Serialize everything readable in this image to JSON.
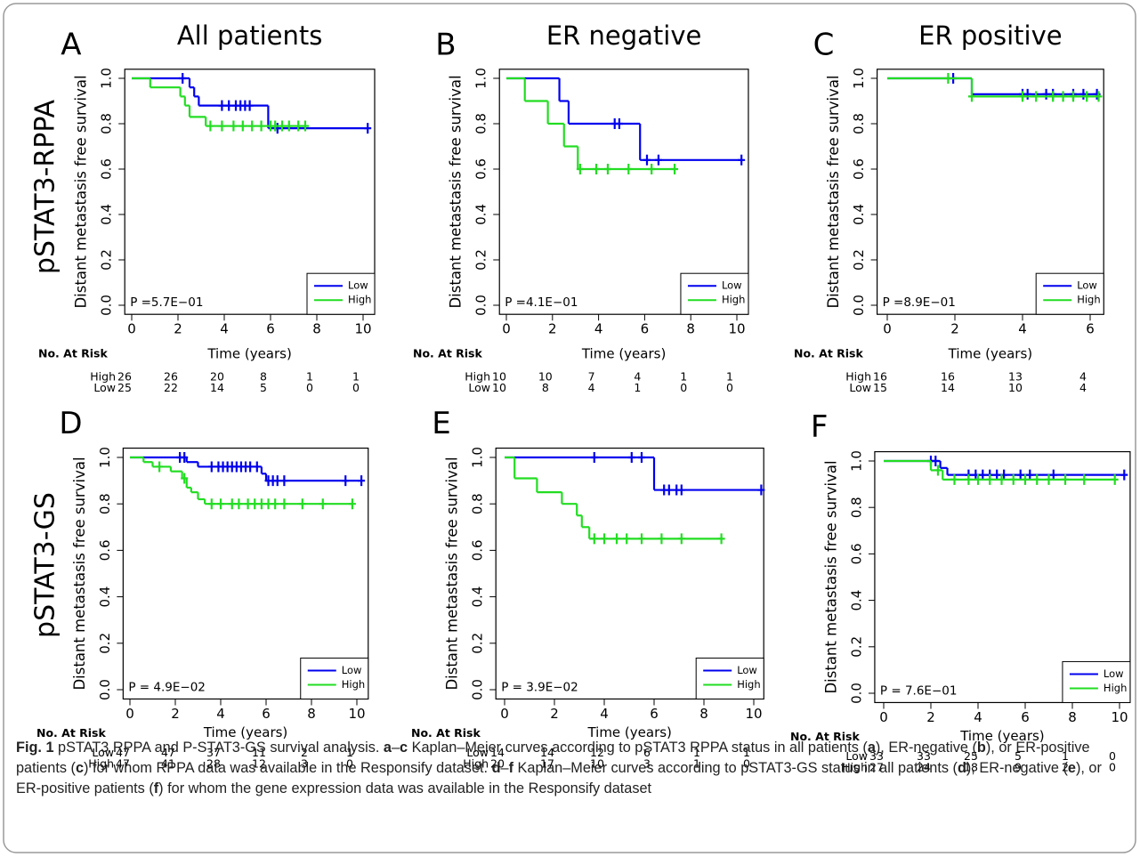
{
  "row_labels": [
    "pSTAT3-RPPA",
    "pSTAT3-GS"
  ],
  "caption": [
    {
      "text": "Fig. 1",
      "bold": true
    },
    {
      "text": " pSTAT3 RPPA and P-STAT3-GS survival analysis. ",
      "bold": false
    },
    {
      "text": "a",
      "bold": true
    },
    {
      "text": "–",
      "bold": false
    },
    {
      "text": "c",
      "bold": true
    },
    {
      "text": " Kaplan–Meier curves according to pSTAT3 RPPA status in all patients (",
      "bold": false
    },
    {
      "text": "a",
      "bold": true
    },
    {
      "text": "), ER-negative (",
      "bold": false
    },
    {
      "text": "b",
      "bold": true
    },
    {
      "text": "), or ER-positive patients (",
      "bold": false
    },
    {
      "text": "c",
      "bold": true
    },
    {
      "text": ") for whom RPPA data was available in the Responsify dataset. ",
      "bold": false
    },
    {
      "text": "d",
      "bold": true
    },
    {
      "text": "–",
      "bold": false
    },
    {
      "text": "f",
      "bold": true
    },
    {
      "text": " Kaplan–Meier curves according to pSTAT3-GS status in all patients (",
      "bold": false
    },
    {
      "text": "d",
      "bold": true
    },
    {
      "text": "), ER-negative (",
      "bold": false
    },
    {
      "text": "e",
      "bold": true
    },
    {
      "text": "), or ER-positive patients (",
      "bold": false
    },
    {
      "text": "f",
      "bold": true
    },
    {
      "text": ") for whom the gene expression data was available in the Responsify dataset",
      "bold": false
    }
  ],
  "chart_data": [
    {
      "type": "line",
      "panel": "A",
      "title": "All patients",
      "x_label": "Time (years)",
      "y_label": "Distant metastasis free survival",
      "xlim": [
        -0.3,
        10.5
      ],
      "ylim": [
        -0.04,
        1.04
      ],
      "xticks": [
        0,
        2,
        4,
        6,
        8,
        10
      ],
      "yticks": [
        {
          "value": 0,
          "label": "0.0"
        },
        {
          "value": 0.2,
          "label": "0.2"
        },
        {
          "value": 0.4,
          "label": "0.4"
        },
        {
          "value": 0.6,
          "label": "0.6"
        },
        {
          "value": 0.8,
          "label": "0.8"
        },
        {
          "value": 1,
          "label": "1.0"
        }
      ],
      "annotation": "P =5.7E−01",
      "legend": "lower right",
      "series": [
        {
          "name": "Low",
          "color": "#0000ee",
          "x": [
            0,
            2.5,
            2.7,
            2.9,
            5.9,
            10.2
          ],
          "values": [
            1,
            0.96,
            0.92,
            0.88,
            0.78,
            0.78
          ],
          "censored_x": [
            2.2,
            3.9,
            4.2,
            4.5,
            4.7,
            4.9,
            5.1,
            6.3,
            10.2
          ],
          "censored_values": [
            1,
            0.88,
            0.88,
            0.88,
            0.88,
            0.88,
            0.88,
            0.78,
            0.78
          ]
        },
        {
          "name": "High",
          "color": "#22dd22",
          "x": [
            0,
            0.8,
            2.1,
            2.3,
            2.5,
            3.2,
            7.5
          ],
          "values": [
            1,
            0.96,
            0.92,
            0.88,
            0.83,
            0.79,
            0.79
          ],
          "censored_x": [
            3.4,
            3.9,
            4.4,
            4.8,
            5.2,
            5.6,
            6.0,
            6.2,
            6.5,
            6.8,
            7.2,
            7.5
          ],
          "censored_values": [
            0.79,
            0.79,
            0.79,
            0.79,
            0.79,
            0.79,
            0.79,
            0.79,
            0.79,
            0.79,
            0.79,
            0.79
          ]
        }
      ],
      "risk_table": {
        "title": "No. At Risk",
        "rows": [
          {
            "label": "High",
            "counts": [
              26,
              26,
              20,
              8,
              1,
              1
            ]
          },
          {
            "label": "Low",
            "counts": [
              25,
              22,
              14,
              5,
              0,
              0
            ]
          }
        ]
      }
    },
    {
      "type": "line",
      "panel": "B",
      "title": "ER negative",
      "x_label": "Time (years)",
      "y_label": "Distant metastasis free survival",
      "xlim": [
        -0.3,
        10.5
      ],
      "ylim": [
        -0.04,
        1.04
      ],
      "xticks": [
        0,
        2,
        4,
        6,
        8,
        10
      ],
      "yticks": [
        {
          "value": 0,
          "label": "0.0"
        },
        {
          "value": 0.2,
          "label": "0.2"
        },
        {
          "value": 0.4,
          "label": "0.4"
        },
        {
          "value": 0.6,
          "label": "0.6"
        },
        {
          "value": 0.8,
          "label": "0.8"
        },
        {
          "value": 1,
          "label": "1.0"
        }
      ],
      "annotation": "P =4.1E−01",
      "legend": "lower right",
      "series": [
        {
          "name": "Low",
          "color": "#0000ee",
          "x": [
            0,
            2.3,
            2.7,
            5.8,
            10.2
          ],
          "values": [
            1,
            0.9,
            0.8,
            0.64,
            0.64
          ],
          "censored_x": [
            4.7,
            4.9,
            6.1,
            6.6,
            10.2
          ],
          "censored_values": [
            0.8,
            0.8,
            0.64,
            0.64,
            0.64
          ]
        },
        {
          "name": "High",
          "color": "#22dd22",
          "x": [
            0,
            0.8,
            1.8,
            2.5,
            3.1,
            7.3
          ],
          "values": [
            1,
            0.9,
            0.8,
            0.7,
            0.6,
            0.6
          ],
          "censored_x": [
            3.2,
            3.9,
            4.4,
            5.3,
            6.3,
            7.3
          ],
          "censored_values": [
            0.6,
            0.6,
            0.6,
            0.6,
            0.6,
            0.6
          ]
        }
      ],
      "risk_table": {
        "title": "No. At Risk",
        "rows": [
          {
            "label": "High",
            "counts": [
              10,
              10,
              7,
              4,
              1,
              1
            ]
          },
          {
            "label": "Low",
            "counts": [
              10,
              8,
              4,
              1,
              0,
              0
            ]
          }
        ]
      }
    },
    {
      "type": "line",
      "panel": "C",
      "title": "ER positive",
      "x_label": "Time (years)",
      "y_label": "Distant metastasis free survival",
      "xlim": [
        -0.3,
        6.4
      ],
      "ylim": [
        -0.04,
        1.04
      ],
      "xticks": [
        0,
        2,
        4,
        6
      ],
      "yticks": [
        {
          "value": 0,
          "label": "0.0"
        },
        {
          "value": 0.2,
          "label": "0.2"
        },
        {
          "value": 0.4,
          "label": "0.4"
        },
        {
          "value": 0.6,
          "label": "0.6"
        },
        {
          "value": 0.8,
          "label": "0.8"
        },
        {
          "value": 1,
          "label": "1.0"
        }
      ],
      "annotation": "P =8.9E−01",
      "legend": "lower right",
      "series": [
        {
          "name": "Low",
          "color": "#0000ee",
          "x": [
            0,
            2.5,
            6.2
          ],
          "values": [
            1,
            0.93,
            0.93
          ],
          "censored_x": [
            1.95,
            4.0,
            4.15,
            4.7,
            4.9,
            5.5,
            5.8,
            6.2
          ],
          "censored_values": [
            1,
            0.93,
            0.93,
            0.93,
            0.93,
            0.93,
            0.93,
            0.93
          ]
        },
        {
          "name": "High",
          "color": "#22dd22",
          "x": [
            0,
            2.5,
            6.25
          ],
          "values": [
            1,
            0.92,
            0.92
          ],
          "censored_x": [
            1.8,
            2.5,
            4.0,
            4.4,
            4.9,
            5.2,
            5.5,
            5.9,
            6.25
          ],
          "censored_values": [
            1,
            0.92,
            0.92,
            0.92,
            0.92,
            0.92,
            0.92,
            0.92,
            0.92
          ]
        }
      ],
      "risk_table": {
        "title": "No. At Risk",
        "rows": [
          {
            "label": "High",
            "counts": [
              16,
              16,
              13,
              4
            ]
          },
          {
            "label": "Low",
            "counts": [
              15,
              14,
              10,
              4
            ]
          }
        ]
      }
    },
    {
      "type": "line",
      "panel": "D",
      "x_label": "Time (years)",
      "y_label": "Distant metastasis free survival",
      "xlim": [
        -0.3,
        10.5
      ],
      "ylim": [
        -0.04,
        1.04
      ],
      "xticks": [
        0,
        2,
        4,
        6,
        8,
        10
      ],
      "yticks": [
        {
          "value": 0,
          "label": "0.0"
        },
        {
          "value": 0.2,
          "label": "0.2"
        },
        {
          "value": 0.4,
          "label": "0.4"
        },
        {
          "value": 0.6,
          "label": "0.6"
        },
        {
          "value": 0.8,
          "label": "0.8"
        },
        {
          "value": 1,
          "label": "1.0"
        }
      ],
      "annotation": "P = 4.9E−02",
      "legend": "lower right",
      "series": [
        {
          "name": "Low",
          "color": "#0000ee",
          "x": [
            0,
            2.5,
            3.0,
            5.8,
            6.0,
            10.2
          ],
          "values": [
            1,
            0.98,
            0.96,
            0.93,
            0.9,
            0.9
          ],
          "censored_x": [
            2.2,
            2.4,
            3.6,
            3.9,
            4.1,
            4.3,
            4.5,
            4.7,
            4.9,
            5.1,
            5.3,
            5.6,
            6.1,
            6.3,
            6.5,
            6.8,
            9.5,
            10.2
          ],
          "censored_values": [
            1,
            1,
            0.96,
            0.96,
            0.96,
            0.96,
            0.96,
            0.96,
            0.96,
            0.96,
            0.96,
            0.96,
            0.9,
            0.9,
            0.9,
            0.9,
            0.9,
            0.9
          ]
        },
        {
          "name": "High",
          "color": "#22dd22",
          "x": [
            0,
            0.6,
            1.0,
            1.8,
            2.3,
            2.5,
            2.7,
            3.0,
            3.3,
            9.8
          ],
          "values": [
            1,
            0.98,
            0.96,
            0.94,
            0.91,
            0.87,
            0.85,
            0.82,
            0.8,
            0.8
          ],
          "censored_x": [
            1.3,
            2.4,
            3.6,
            4.0,
            4.5,
            4.8,
            5.2,
            5.5,
            5.8,
            6.1,
            6.4,
            6.8,
            7.6,
            8.5,
            9.8
          ],
          "censored_values": [
            0.96,
            0.91,
            0.8,
            0.8,
            0.8,
            0.8,
            0.8,
            0.8,
            0.8,
            0.8,
            0.8,
            0.8,
            0.8,
            0.8,
            0.8
          ]
        }
      ],
      "risk_table": {
        "title": "No. At Risk",
        "rows": [
          {
            "label": "Low",
            "counts": [
              47,
              47,
              37,
              11,
              2,
              1
            ]
          },
          {
            "label": "High",
            "counts": [
              47,
              41,
              28,
              12,
              3,
              0
            ]
          }
        ]
      }
    },
    {
      "type": "line",
      "panel": "E",
      "x_label": "Time (years)",
      "y_label": "Distant metastasis free survival",
      "xlim": [
        -0.35,
        10.4
      ],
      "ylim": [
        -0.04,
        1.04
      ],
      "xticks": [
        0,
        2,
        4,
        6,
        8,
        10
      ],
      "yticks": [
        {
          "value": 0,
          "label": "0.0"
        },
        {
          "value": 0.2,
          "label": "0.2"
        },
        {
          "value": 0.4,
          "label": "0.4"
        },
        {
          "value": 0.6,
          "label": "0.6"
        },
        {
          "value": 0.8,
          "label": "0.8"
        },
        {
          "value": 1,
          "label": "1.0"
        }
      ],
      "annotation": "P = 3.9E−02",
      "legend": "lower right",
      "series": [
        {
          "name": "Low",
          "color": "#0000ee",
          "x": [
            0,
            6.0,
            10.3
          ],
          "values": [
            1,
            0.86,
            0.86
          ],
          "censored_x": [
            3.6,
            5.1,
            5.5,
            6.4,
            6.6,
            6.9,
            7.1,
            10.3
          ],
          "censored_values": [
            1,
            1,
            1,
            0.86,
            0.86,
            0.86,
            0.86,
            0.86
          ]
        },
        {
          "name": "High",
          "color": "#22dd22",
          "x": [
            0,
            0.4,
            1.3,
            2.3,
            2.9,
            3.1,
            3.4,
            8.7
          ],
          "values": [
            1,
            0.91,
            0.85,
            0.8,
            0.75,
            0.7,
            0.65,
            0.65
          ],
          "censored_x": [
            3.6,
            4.0,
            4.5,
            4.9,
            5.5,
            6.3,
            7.1,
            8.7
          ],
          "censored_values": [
            0.65,
            0.65,
            0.65,
            0.65,
            0.65,
            0.65,
            0.65,
            0.65
          ]
        }
      ],
      "risk_table": {
        "title": "No. At Risk",
        "rows": [
          {
            "label": "Low",
            "counts": [
              14,
              14,
              12,
              6,
              1,
              1
            ]
          },
          {
            "label": "High",
            "counts": [
              20,
              17,
              10,
              3,
              1,
              0
            ]
          }
        ]
      }
    },
    {
      "type": "line",
      "panel": "F",
      "x_label": "Time (years)",
      "y_label": "Distant metastasis free survival",
      "xlim": [
        -0.38,
        10.45
      ],
      "ylim": [
        -0.04,
        1.04
      ],
      "xticks": [
        0,
        2,
        4,
        6,
        8,
        10
      ],
      "yticks": [
        {
          "value": 0,
          "label": "0.0"
        },
        {
          "value": 0.2,
          "label": "0.2"
        },
        {
          "value": 0.4,
          "label": "0.4"
        },
        {
          "value": 0.6,
          "label": "0.6"
        },
        {
          "value": 0.8,
          "label": "0.8"
        },
        {
          "value": 1,
          "label": "1.0"
        }
      ],
      "annotation": "P = 7.6E−01",
      "legend": "lower right",
      "series": [
        {
          "name": "Low",
          "color": "#0000ee",
          "x": [
            0,
            2.4,
            2.7,
            10.2
          ],
          "values": [
            1,
            0.97,
            0.94,
            0.94
          ],
          "censored_x": [
            2.0,
            2.2,
            3.6,
            3.9,
            4.2,
            4.5,
            4.8,
            5.1,
            5.8,
            6.2,
            7.2,
            10.2
          ],
          "censored_values": [
            1,
            1,
            0.94,
            0.94,
            0.94,
            0.94,
            0.94,
            0.94,
            0.94,
            0.94,
            0.94,
            0.94
          ]
        },
        {
          "name": "High",
          "color": "#22dd22",
          "x": [
            0,
            2.0,
            2.5,
            9.8
          ],
          "values": [
            1,
            0.96,
            0.92,
            0.92
          ],
          "censored_x": [
            2.3,
            3.0,
            3.6,
            4.0,
            4.5,
            5.0,
            5.5,
            6.0,
            6.5,
            7.0,
            7.7,
            8.5,
            9.8
          ],
          "censored_values": [
            0.96,
            0.92,
            0.92,
            0.92,
            0.92,
            0.92,
            0.92,
            0.92,
            0.92,
            0.92,
            0.92,
            0.92,
            0.92
          ]
        }
      ],
      "risk_table": {
        "title": "No. At Risk",
        "rows": [
          {
            "label": "Low",
            "counts": [
              33,
              33,
              25,
              5,
              1,
              0
            ]
          },
          {
            "label": "High",
            "counts": [
              27,
              24,
              18,
              9,
              2,
              0
            ]
          }
        ]
      }
    }
  ]
}
